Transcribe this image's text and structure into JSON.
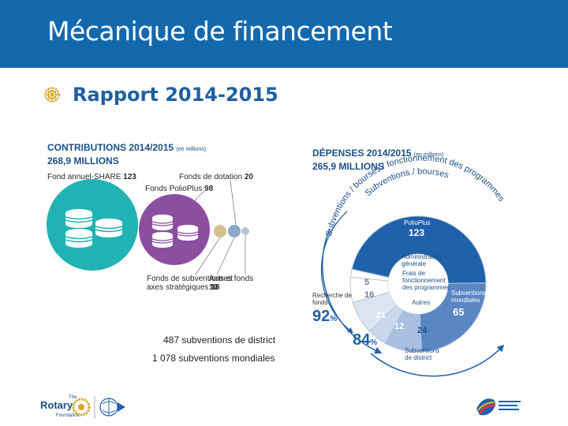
{
  "header": {
    "title": "Mécanique de financement",
    "subtitle": "Rapport 2014-2015"
  },
  "contributions": {
    "heading_line1": "CONTRIBUTIONS 2014/2015",
    "heading_unit": "(en millions)",
    "heading_line2": "268,9 MILLIONS",
    "items": [
      {
        "label": "Fond annuel-SHARE",
        "value": "123"
      },
      {
        "label": "Fonds de dotation",
        "value": "20"
      },
      {
        "label": "Fonds PolioPlus",
        "value": "98"
      },
      {
        "label": "Fonds de subventions et axes stratégiques",
        "label_line1": "Fonds de subventions et",
        "label_line2": "axes stratégiques",
        "value": "18"
      },
      {
        "label": "Autres fonds",
        "value": "10"
      }
    ],
    "colors": {
      "share": "#21b3b3",
      "polio": "#8b4fa0",
      "grey": "#c8c8c8"
    }
  },
  "depenses": {
    "heading_line1": "DÉPENSES 2014/2015",
    "heading_unit": "(en millions)",
    "heading_line2": "265,9 MILLIONS",
    "arc_outer": "Subventions / bourses / fonctionnement des programmes",
    "arc_inner": "Subventions / bourses",
    "segments": [
      {
        "label": "PolioPlus",
        "value": "123",
        "color": "#1f61ab"
      },
      {
        "label": "Subventions mondiales",
        "value": "65",
        "color": "#5a86c4"
      },
      {
        "label": "Subventions de district",
        "value": "24",
        "color": "#a8bfe0"
      },
      {
        "label": "Autres",
        "value": "12",
        "color": "#c9d8ee"
      },
      {
        "label": "Frais de fonctionnement des programmes",
        "value": "21",
        "color": "#dbe5f2"
      },
      {
        "label": "Recherche de fonds",
        "value": "16",
        "color": "#ffffff"
      },
      {
        "label": "Administration générale",
        "value": "5",
        "color": "#ffffff"
      }
    ],
    "labels": {
      "polio": "PolioPlus",
      "polio_val": "123",
      "admin_line1": "Administration",
      "admin_line2": "générale",
      "frais_line1": "Frais de",
      "frais_line2": "fonctionnement",
      "frais_line3": "des programmes",
      "autres": "Autres",
      "mondiales_line1": "Subventions",
      "mondiales_line2": "mondiales",
      "mondiales_val": "65",
      "district_line1": "Subventions",
      "district_line2": "de district",
      "district_val": "24",
      "autres_val": "12",
      "frais_val": "21",
      "recherche_line1": "Recherche de",
      "recherche_line2": "fonds",
      "recherche_val": "16",
      "admin_val": "5",
      "pct92": "92",
      "pct84": "84",
      "pct_sign": "%"
    }
  },
  "notes": {
    "line1": "487 subventions de district",
    "line2": "1 078 subventions mondiales"
  },
  "footer": {
    "logo_line1": "The",
    "logo_name": "Rotary",
    "logo_line3": "Foundation"
  }
}
